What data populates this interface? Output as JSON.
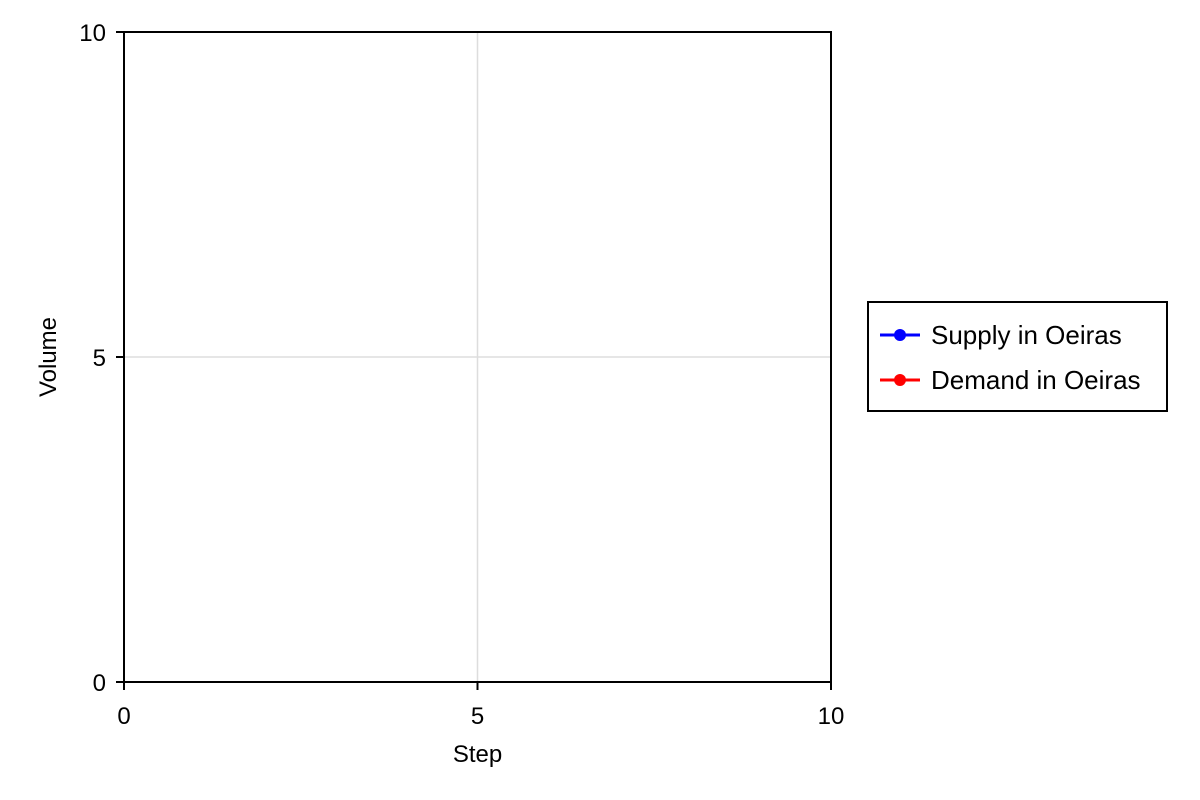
{
  "chart_data": {
    "type": "line",
    "title": "",
    "xlabel": "Step",
    "ylabel": "Volume",
    "xlim": [
      0,
      10
    ],
    "ylim": [
      0,
      10
    ],
    "xticks": [
      0,
      5,
      10
    ],
    "yticks": [
      0,
      5,
      10
    ],
    "grid": true,
    "legend_position": "right",
    "series": [
      {
        "name": "Supply in Oeiras",
        "color": "#0000ff",
        "marker": "circle",
        "x": [],
        "y": []
      },
      {
        "name": "Demand in Oeiras",
        "color": "#ff0000",
        "marker": "circle",
        "x": [],
        "y": []
      }
    ]
  }
}
